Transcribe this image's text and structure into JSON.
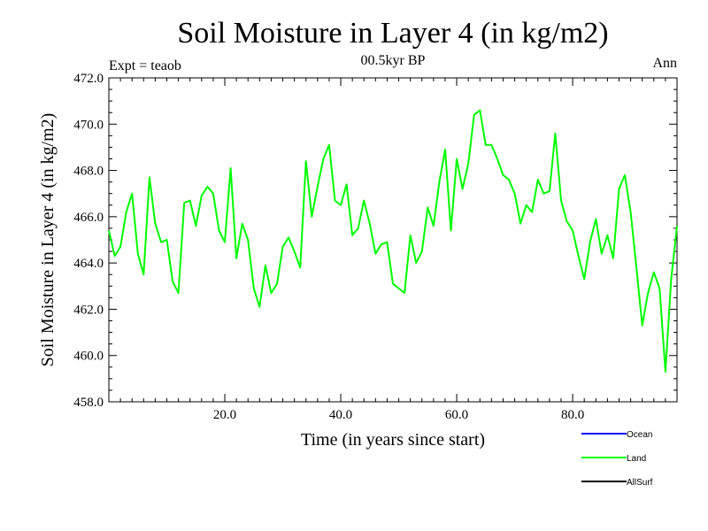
{
  "chart_data": {
    "type": "line",
    "title": "Soil Moisture in Layer 4 (in kg/m2)",
    "subtitle": "00.5kyr BP",
    "left_note": "Expt = teaob",
    "right_note": "Ann",
    "xlabel": "Time (in years since start)",
    "ylabel": "Soil Moisture in Layer 4 (in kg/m2)",
    "xlim": [
      0,
      98
    ],
    "ylim": [
      458,
      472
    ],
    "x_ticks": [
      20,
      40,
      60,
      80
    ],
    "x_tick_labels": [
      "20.0",
      "40.0",
      "60.0",
      "80.0"
    ],
    "y_ticks": [
      458,
      460,
      462,
      464,
      466,
      468,
      470,
      472
    ],
    "y_tick_labels": [
      "458.0",
      "460.0",
      "462.0",
      "464.0",
      "466.0",
      "468.0",
      "470.0",
      "472.0"
    ],
    "legend": [
      {
        "name": "Ocean",
        "color": "#0000ff"
      },
      {
        "name": "Land",
        "color": "#00ff00"
      },
      {
        "name": "AllSurf",
        "color": "#000000"
      }
    ],
    "series": [
      {
        "name": "Land",
        "color": "#00ff00",
        "x": [
          0,
          1,
          2,
          3,
          4,
          5,
          6,
          7,
          8,
          9,
          10,
          11,
          12,
          13,
          14,
          15,
          16,
          17,
          18,
          19,
          20,
          21,
          22,
          23,
          24,
          25,
          26,
          27,
          28,
          29,
          30,
          31,
          32,
          33,
          34,
          35,
          36,
          37,
          38,
          39,
          40,
          41,
          42,
          43,
          44,
          45,
          46,
          47,
          48,
          49,
          50,
          51,
          52,
          53,
          54,
          55,
          56,
          57,
          58,
          59,
          60,
          61,
          62,
          63,
          64,
          65,
          66,
          67,
          68,
          69,
          70,
          71,
          72,
          73,
          74,
          75,
          76,
          77,
          78,
          79,
          80,
          81,
          82,
          83,
          84,
          85,
          86,
          87,
          88,
          89,
          90,
          91,
          92,
          93,
          94,
          95,
          96,
          97,
          98
        ],
        "values": [
          465.4,
          464.3,
          464.7,
          466.2,
          467.0,
          464.4,
          463.5,
          467.7,
          465.7,
          464.9,
          465.0,
          463.2,
          462.7,
          466.6,
          466.7,
          465.6,
          466.9,
          467.3,
          467.0,
          465.4,
          464.9,
          468.1,
          464.2,
          465.7,
          465.0,
          462.9,
          462.1,
          463.9,
          462.7,
          463.1,
          464.7,
          465.1,
          464.5,
          463.8,
          468.4,
          466.0,
          467.3,
          468.5,
          469.1,
          466.7,
          466.5,
          467.4,
          465.2,
          465.5,
          466.7,
          465.7,
          464.4,
          464.8,
          464.9,
          463.1,
          462.9,
          462.7,
          465.2,
          464.0,
          464.5,
          466.4,
          465.6,
          467.5,
          468.9,
          465.4,
          468.5,
          467.2,
          468.3,
          470.4,
          470.6,
          469.1,
          469.1,
          468.5,
          467.8,
          467.6,
          467.0,
          465.7,
          466.5,
          466.2,
          467.6,
          467.0,
          467.1,
          469.6,
          466.7,
          465.8,
          465.4,
          464.3,
          463.3,
          464.9,
          465.9,
          464.4,
          465.2,
          464.2,
          467.2,
          467.8,
          466.2,
          463.8,
          461.3,
          462.7,
          463.6,
          462.9,
          459.3,
          463.3,
          465.6
        ]
      }
    ]
  }
}
